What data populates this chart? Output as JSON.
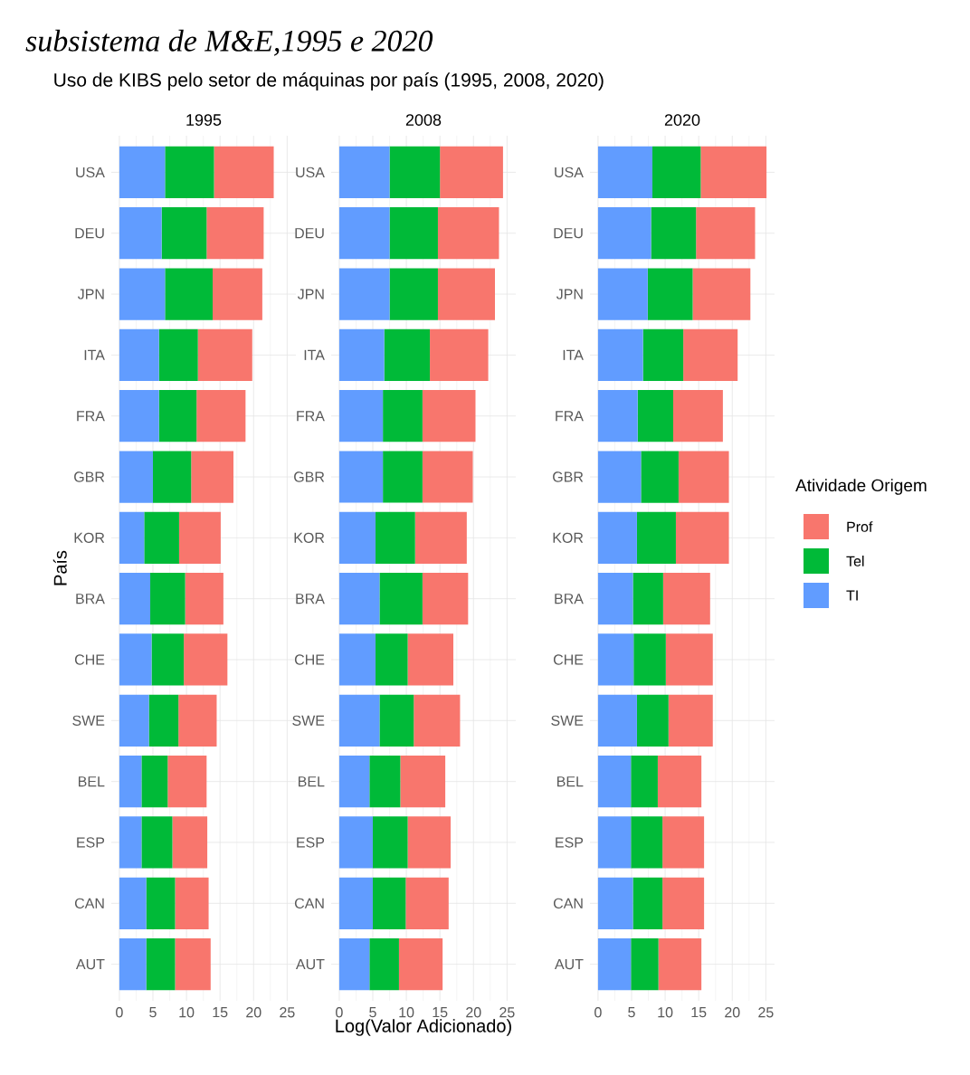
{
  "chart_data": [
    {
      "type": "bar",
      "orientation": "horizontal",
      "stacked": true,
      "title": "Uso de KIBS pelo setor de máquinas por país (1995, 2008, 2020)",
      "subtitle": "1995",
      "ylabel": "País",
      "annotations": [
        "subsistema de M&E,1995 e 2020"
      ],
      "categories": [
        "USA",
        "DEU",
        "JPN",
        "ITA",
        "FRA",
        "GBR",
        "KOR",
        "BRA",
        "CHE",
        "SWE",
        "BEL",
        "ESP",
        "CAN",
        "AUT"
      ],
      "series": [
        {
          "color": "#619cff",
          "values": [
            6.8,
            6.3,
            6.8,
            5.9,
            5.9,
            5.0,
            3.7,
            4.6,
            4.8,
            4.4,
            3.3,
            3.3,
            4.0,
            4.0
          ]
        },
        {
          "color": "#00ba38",
          "values": [
            7.3,
            6.7,
            7.1,
            5.8,
            5.6,
            5.7,
            5.2,
            5.2,
            4.8,
            4.4,
            3.9,
            4.6,
            4.3,
            4.3
          ]
        },
        {
          "color": "#f8766d",
          "values": [
            8.9,
            8.5,
            7.4,
            8.1,
            7.3,
            6.3,
            6.2,
            5.7,
            6.5,
            5.7,
            5.8,
            5.2,
            5.0,
            5.3
          ]
        }
      ],
      "xlim": [
        -1.2,
        26.3
      ],
      "xticks": [
        0,
        5,
        10,
        15,
        20,
        25
      ],
      "grid": true
    },
    {
      "type": "bar",
      "orientation": "horizontal",
      "stacked": true,
      "subtitle": "2008",
      "xlabel": "Log(Valor Adicionado)",
      "categories": [
        "USA",
        "DEU",
        "JPN",
        "ITA",
        "FRA",
        "GBR",
        "KOR",
        "BRA",
        "CHE",
        "SWE",
        "BEL",
        "ESP",
        "CAN",
        "AUT"
      ],
      "series": [
        {
          "color": "#619cff",
          "values": [
            7.5,
            7.5,
            7.5,
            6.7,
            6.5,
            6.5,
            5.4,
            6.0,
            5.4,
            6.0,
            4.5,
            5.0,
            5.0,
            4.5
          ]
        },
        {
          "color": "#00ba38",
          "values": [
            7.5,
            7.2,
            7.2,
            6.8,
            5.9,
            5.9,
            5.9,
            6.4,
            4.8,
            5.1,
            4.6,
            5.2,
            4.9,
            4.4
          ]
        },
        {
          "color": "#f8766d",
          "values": [
            9.4,
            9.1,
            8.5,
            8.7,
            7.9,
            7.5,
            7.7,
            6.8,
            6.8,
            6.9,
            6.7,
            6.4,
            6.4,
            6.5
          ]
        }
      ],
      "xlim": [
        -1.2,
        26.3
      ],
      "xticks": [
        0,
        5,
        10,
        15,
        20,
        25
      ],
      "grid": true
    },
    {
      "type": "bar",
      "orientation": "horizontal",
      "stacked": true,
      "subtitle": "2020",
      "legend": "right",
      "legend_title": "Atividade Origem",
      "categories": [
        "USA",
        "DEU",
        "JPN",
        "ITA",
        "FRA",
        "GBR",
        "KOR",
        "BRA",
        "CHE",
        "SWE",
        "BEL",
        "ESP",
        "CAN",
        "AUT"
      ],
      "series": [
        {
          "name": "TI",
          "color": "#619cff",
          "values": [
            8.1,
            7.9,
            7.4,
            6.7,
            5.9,
            6.4,
            5.8,
            5.2,
            5.3,
            5.8,
            4.9,
            4.9,
            5.2,
            4.9
          ]
        },
        {
          "name": "Tel",
          "color": "#00ba38",
          "values": [
            7.2,
            6.7,
            6.7,
            6.0,
            5.3,
            5.6,
            5.8,
            4.5,
            4.8,
            4.7,
            4.0,
            4.7,
            4.4,
            4.1
          ]
        },
        {
          "name": "Prof",
          "color": "#f8766d",
          "values": [
            9.8,
            8.8,
            8.6,
            8.1,
            7.4,
            7.5,
            7.9,
            7.0,
            7.0,
            6.6,
            6.5,
            6.2,
            6.2,
            6.4
          ]
        }
      ],
      "xlim": [
        -1.2,
        26.3
      ],
      "xticks": [
        0,
        5,
        10,
        15,
        20,
        25
      ],
      "grid": true
    }
  ]
}
